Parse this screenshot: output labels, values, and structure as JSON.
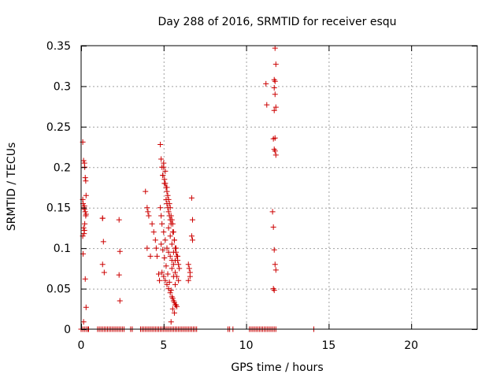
{
  "chart_data": {
    "type": "scatter",
    "title": "Day 288 of 2016, SRMTID for receiver esqu",
    "xlabel": "GPS time / hours",
    "ylabel": "SRMTID / TECUs",
    "xlim": [
      0,
      24
    ],
    "ylim": [
      0,
      0.35
    ],
    "xticks": [
      0,
      5,
      10,
      15,
      20
    ],
    "xtick_labels": [
      "0",
      "5",
      "10",
      "15",
      "20"
    ],
    "yticks": [
      0,
      0.05,
      0.1,
      0.15,
      0.2,
      0.25,
      0.3,
      0.35
    ],
    "ytick_labels": [
      "0",
      "0.05",
      "0.1",
      "0.15",
      "0.2",
      "0.25",
      "0.3",
      "0.35"
    ],
    "grid": true,
    "marker": "plus",
    "color": "#cc0000",
    "series": [
      {
        "x": [
          0.1,
          0.15,
          0.2,
          0.22,
          0.25,
          0.28,
          0.3,
          0.1,
          0.12,
          0.18,
          0.2,
          0.25,
          0.3,
          0.15,
          0.2,
          0.1,
          0.12,
          0.25,
          0.3,
          0.15,
          0.2,
          0.28,
          0.22,
          0.18,
          1.3,
          1.35,
          1.3,
          1.4,
          1.3,
          2.3,
          2.35,
          2.3,
          2.35,
          3.9,
          4.0,
          4.05,
          4.1,
          4.0,
          4.2,
          4.3,
          4.4,
          4.5,
          4.55,
          4.6,
          4.7,
          4.75,
          4.8,
          4.85,
          4.9,
          4.95,
          5.0,
          5.05,
          5.1,
          5.15,
          5.2,
          5.25,
          5.3,
          5.35,
          5.4,
          5.45,
          5.5,
          5.55,
          5.6,
          5.65,
          5.7,
          5.75,
          5.8,
          5.85,
          5.9,
          5.95,
          4.8,
          4.85,
          4.9,
          5.0,
          5.1,
          5.2,
          5.3,
          5.4,
          5.5,
          5.6,
          5.7,
          5.8,
          5.9,
          4.95,
          5.05,
          5.15,
          5.25,
          5.35,
          5.45,
          5.55,
          5.65,
          5.75,
          5.85,
          4.9,
          5.0,
          5.1,
          5.2,
          5.3,
          5.4,
          5.5,
          5.6,
          5.7,
          5.8,
          5.0,
          5.1,
          5.2,
          5.3,
          5.4,
          5.5,
          5.6,
          5.7,
          4.85,
          4.95,
          5.05,
          5.15,
          5.25,
          5.35,
          5.45,
          5.55,
          5.65,
          5.75,
          5.2,
          5.3,
          5.4,
          5.5,
          5.6,
          5.7,
          5.45,
          5.55,
          5.65,
          6.5,
          6.55,
          6.6,
          6.5,
          6.6,
          6.7,
          6.75,
          6.7,
          6.75,
          11.2,
          11.25,
          11.6,
          11.65,
          11.7,
          11.75,
          11.8,
          11.65,
          11.7,
          11.75,
          11.8,
          11.7,
          11.75,
          11.7,
          11.75,
          11.8,
          11.7,
          11.75,
          11.7,
          11.75,
          11.8,
          11.65
        ],
        "y": [
          0.231,
          0.208,
          0.205,
          0.2,
          0.187,
          0.183,
          0.165,
          0.16,
          0.155,
          0.15,
          0.148,
          0.145,
          0.142,
          0.125,
          0.122,
          0.115,
          0.093,
          0.062,
          0.027,
          0.009,
          0.152,
          0.14,
          0.13,
          0.118,
          0.137,
          0.108,
          0.08,
          0.07,
          0.137,
          0.135,
          0.096,
          0.067,
          0.035,
          0.17,
          0.15,
          0.145,
          0.14,
          0.1,
          0.09,
          0.13,
          0.12,
          0.11,
          0.1,
          0.09,
          0.068,
          0.06,
          0.228,
          0.21,
          0.2,
          0.19,
          0.205,
          0.185,
          0.18,
          0.175,
          0.17,
          0.165,
          0.16,
          0.155,
          0.15,
          0.14,
          0.135,
          0.13,
          0.12,
          0.11,
          0.1,
          0.095,
          0.09,
          0.085,
          0.08,
          0.075,
          0.15,
          0.14,
          0.13,
          0.12,
          0.11,
          0.1,
          0.095,
          0.09,
          0.085,
          0.08,
          0.07,
          0.065,
          0.06,
          0.19,
          0.18,
          0.16,
          0.15,
          0.14,
          0.13,
          0.12,
          0.11,
          0.1,
          0.09,
          0.07,
          0.065,
          0.06,
          0.055,
          0.05,
          0.045,
          0.04,
          0.035,
          0.03,
          0.028,
          0.2,
          0.195,
          0.175,
          0.125,
          0.115,
          0.105,
          0.095,
          0.085,
          0.105,
          0.098,
          0.088,
          0.078,
          0.068,
          0.058,
          0.048,
          0.038,
          0.033,
          0.03,
          0.155,
          0.145,
          0.135,
          0.075,
          0.065,
          0.055,
          0.009,
          0.025,
          0.02,
          0.08,
          0.075,
          0.07,
          0.06,
          0.065,
          0.162,
          0.135,
          0.115,
          0.11,
          0.303,
          0.277,
          0.145,
          0.126,
          0.098,
          0.08,
          0.073,
          0.05,
          0.048,
          0.347,
          0.327,
          0.308,
          0.306,
          0.298,
          0.29,
          0.274,
          0.27,
          0.236,
          0.222,
          0.22,
          0.215,
          0.235
        ]
      },
      {
        "x": [
          0.0,
          0.1,
          0.2,
          0.3,
          0.4,
          0.45,
          1.0,
          1.1,
          1.2,
          1.3,
          1.4,
          1.5,
          1.6,
          1.7,
          1.8,
          1.9,
          2.0,
          2.1,
          2.2,
          2.3,
          2.4,
          2.5,
          2.6,
          3.0,
          3.1,
          3.6,
          3.7,
          3.8,
          3.9,
          4.0,
          4.1,
          4.2,
          4.3,
          4.4,
          4.5,
          4.6,
          4.7,
          4.8,
          4.9,
          5.0,
          5.1,
          5.2,
          5.3,
          5.4,
          5.5,
          5.6,
          5.7,
          5.8,
          5.9,
          6.0,
          6.1,
          6.2,
          6.3,
          6.4,
          6.5,
          6.6,
          6.7,
          6.8,
          6.9,
          7.0,
          8.9,
          9.0,
          9.2,
          10.2,
          10.3,
          10.4,
          10.5,
          10.6,
          10.7,
          10.8,
          10.9,
          11.0,
          11.1,
          11.2,
          11.3,
          11.4,
          11.5,
          11.6,
          11.7,
          11.8,
          14.1
        ],
        "y": [
          0,
          0,
          0,
          0,
          0,
          0,
          0,
          0,
          0,
          0,
          0,
          0,
          0,
          0,
          0,
          0,
          0,
          0,
          0,
          0,
          0,
          0,
          0,
          0,
          0,
          0,
          0,
          0,
          0,
          0,
          0,
          0,
          0,
          0,
          0,
          0,
          0,
          0,
          0,
          0,
          0,
          0,
          0,
          0,
          0,
          0,
          0,
          0,
          0,
          0,
          0,
          0,
          0,
          0,
          0,
          0,
          0,
          0,
          0,
          0,
          0,
          0,
          0,
          0,
          0,
          0,
          0,
          0,
          0,
          0,
          0,
          0,
          0,
          0,
          0,
          0,
          0,
          0,
          0,
          0,
          0
        ]
      }
    ]
  }
}
